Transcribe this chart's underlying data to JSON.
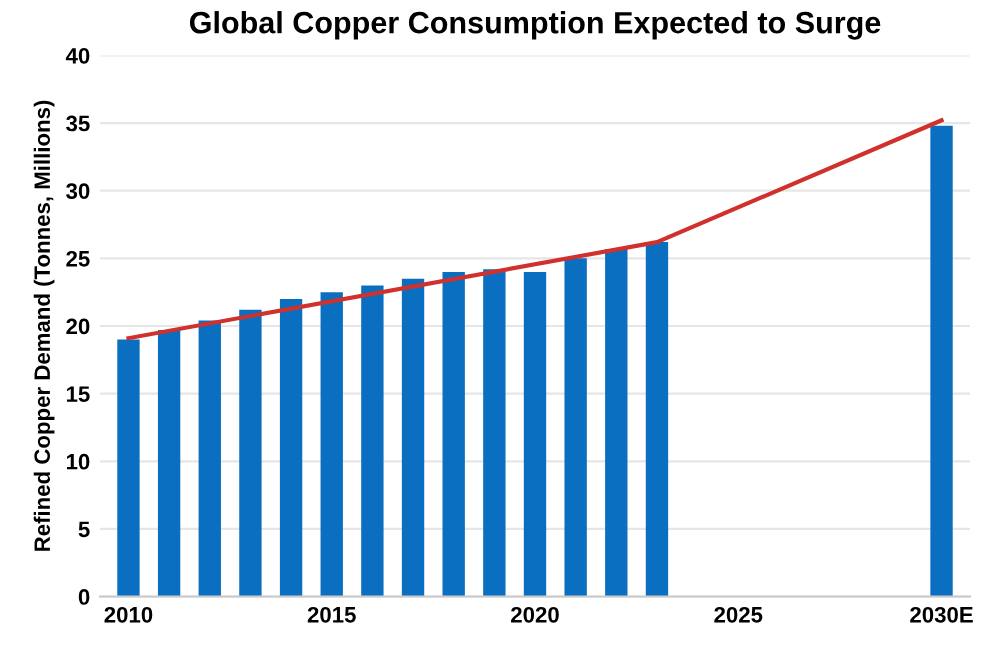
{
  "chart_data": {
    "type": "bar",
    "title": "Global Copper Consumption Expected to Surge",
    "ylabel": "Refined Copper Demand (Tonnes, Millions)",
    "x": [
      2010,
      2011,
      2012,
      2013,
      2014,
      2015,
      2016,
      2017,
      2018,
      2019,
      2020,
      2021,
      2022,
      2023,
      2030
    ],
    "series": [
      {
        "color": "#0a6fc0",
        "values": [
          19.0,
          19.7,
          20.4,
          21.2,
          22.0,
          22.5,
          23.0,
          23.5,
          24.0,
          24.2,
          24.0,
          25.0,
          25.7,
          26.2,
          34.8
        ]
      },
      {
        "type": "line",
        "color": "#d0312d",
        "x": [
          2010,
          2023,
          2030
        ],
        "values": [
          19.1,
          26.2,
          35.2
        ]
      }
    ],
    "xlim": [
      2009.3,
      2030.7
    ],
    "xticks": [
      2010,
      2015,
      2020,
      2025,
      {
        "value": 2030,
        "label": "2030E"
      }
    ],
    "ylim": [
      0,
      40
    ],
    "yticks": [
      0,
      5,
      10,
      15,
      20,
      25,
      30,
      35,
      40
    ],
    "grid": "y",
    "marker": "none",
    "line_style": "solid"
  }
}
